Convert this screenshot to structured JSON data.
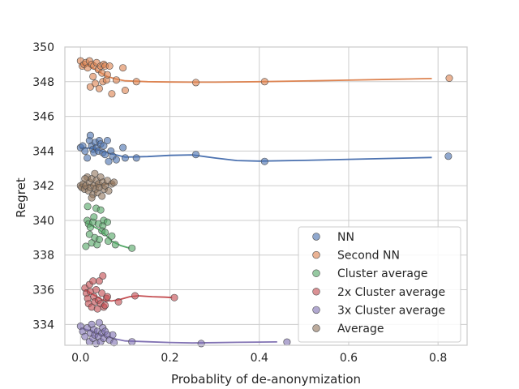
{
  "chart_data": {
    "type": "scatter",
    "xlabel": "Probablity of de-anonymization",
    "ylabel": "Regret",
    "xlim": [
      -0.035,
      0.865
    ],
    "ylim": [
      332.8,
      350.0
    ],
    "x_ticks": [
      0.0,
      0.2,
      0.4,
      0.6,
      0.8
    ],
    "x_tick_labels": [
      "0.0",
      "0.2",
      "0.4",
      "0.6",
      "0.8"
    ],
    "y_ticks": [
      334,
      336,
      338,
      340,
      342,
      344,
      346,
      348,
      350
    ],
    "y_tick_labels": [
      "334",
      "336",
      "338",
      "340",
      "342",
      "344",
      "346",
      "348",
      "350"
    ],
    "grid": true,
    "legend_position": "lower-right",
    "series": [
      {
        "name": "NN",
        "color": "#4c72b0",
        "points": [
          [
            0.0,
            344.2
          ],
          [
            0.005,
            344.3
          ],
          [
            0.01,
            344.0
          ],
          [
            0.015,
            343.6
          ],
          [
            0.02,
            344.6
          ],
          [
            0.022,
            344.9
          ],
          [
            0.025,
            344.3
          ],
          [
            0.028,
            344.1
          ],
          [
            0.03,
            343.9
          ],
          [
            0.033,
            344.5
          ],
          [
            0.036,
            344.2
          ],
          [
            0.04,
            344.0
          ],
          [
            0.042,
            344.6
          ],
          [
            0.045,
            344.4
          ],
          [
            0.05,
            343.9
          ],
          [
            0.052,
            344.3
          ],
          [
            0.055,
            343.8
          ],
          [
            0.06,
            344.6
          ],
          [
            0.063,
            343.4
          ],
          [
            0.068,
            344.0
          ],
          [
            0.072,
            343.7
          ],
          [
            0.08,
            343.5
          ],
          [
            0.095,
            344.2
          ],
          [
            0.1,
            343.6
          ],
          [
            0.125,
            343.6
          ],
          [
            0.258,
            343.8
          ],
          [
            0.412,
            343.4
          ],
          [
            0.823,
            343.7
          ]
        ],
        "fit": [
          [
            0.0,
            344.2
          ],
          [
            0.03,
            344.15
          ],
          [
            0.06,
            343.9
          ],
          [
            0.1,
            343.65
          ],
          [
            0.15,
            343.68
          ],
          [
            0.2,
            343.75
          ],
          [
            0.25,
            343.78
          ],
          [
            0.3,
            343.6
          ],
          [
            0.35,
            343.45
          ],
          [
            0.4,
            343.42
          ],
          [
            0.5,
            343.46
          ],
          [
            0.6,
            343.52
          ],
          [
            0.7,
            343.58
          ],
          [
            0.786,
            343.63
          ]
        ]
      },
      {
        "name": "Second NN",
        "color": "#dd8452",
        "points": [
          [
            0.0,
            349.2
          ],
          [
            0.004,
            348.9
          ],
          [
            0.008,
            349.0
          ],
          [
            0.012,
            349.1
          ],
          [
            0.016,
            348.8
          ],
          [
            0.02,
            349.2
          ],
          [
            0.022,
            347.7
          ],
          [
            0.025,
            349.0
          ],
          [
            0.028,
            348.3
          ],
          [
            0.03,
            348.9
          ],
          [
            0.033,
            347.9
          ],
          [
            0.036,
            349.1
          ],
          [
            0.04,
            348.7
          ],
          [
            0.042,
            347.6
          ],
          [
            0.045,
            348.9
          ],
          [
            0.048,
            348.5
          ],
          [
            0.05,
            348.0
          ],
          [
            0.052,
            349.0
          ],
          [
            0.055,
            348.9
          ],
          [
            0.058,
            348.1
          ],
          [
            0.06,
            348.4
          ],
          [
            0.065,
            348.9
          ],
          [
            0.07,
            347.3
          ],
          [
            0.08,
            348.1
          ],
          [
            0.095,
            348.8
          ],
          [
            0.1,
            347.5
          ],
          [
            0.125,
            348.0
          ],
          [
            0.258,
            347.95
          ],
          [
            0.412,
            348.0
          ],
          [
            0.825,
            348.2
          ]
        ],
        "fit": [
          [
            0.0,
            349.0
          ],
          [
            0.02,
            348.9
          ],
          [
            0.04,
            348.6
          ],
          [
            0.06,
            348.3
          ],
          [
            0.08,
            348.15
          ],
          [
            0.1,
            348.05
          ],
          [
            0.15,
            348.0
          ],
          [
            0.2,
            347.98
          ],
          [
            0.25,
            347.97
          ],
          [
            0.3,
            347.97
          ],
          [
            0.4,
            348.0
          ],
          [
            0.5,
            348.04
          ],
          [
            0.6,
            348.09
          ],
          [
            0.7,
            348.14
          ],
          [
            0.786,
            348.18
          ]
        ]
      },
      {
        "name": "Cluster average",
        "color": "#55a868",
        "points": [
          [
            0.015,
            340.0
          ],
          [
            0.018,
            339.8
          ],
          [
            0.02,
            339.2
          ],
          [
            0.022,
            339.6
          ],
          [
            0.025,
            338.7
          ],
          [
            0.028,
            339.9
          ],
          [
            0.03,
            340.2
          ],
          [
            0.032,
            339.0
          ],
          [
            0.035,
            340.7
          ],
          [
            0.037,
            338.6
          ],
          [
            0.04,
            339.8
          ],
          [
            0.042,
            338.9
          ],
          [
            0.045,
            340.6
          ],
          [
            0.048,
            339.4
          ],
          [
            0.05,
            339.7
          ],
          [
            0.052,
            340.0
          ],
          [
            0.055,
            339.3
          ],
          [
            0.06,
            339.9
          ],
          [
            0.062,
            338.8
          ],
          [
            0.07,
            339.1
          ],
          [
            0.078,
            338.6
          ],
          [
            0.115,
            338.4
          ],
          [
            0.012,
            338.5
          ],
          [
            0.016,
            340.8
          ]
        ],
        "fit": [
          [
            0.012,
            339.85
          ],
          [
            0.025,
            339.7
          ],
          [
            0.04,
            339.5
          ],
          [
            0.055,
            339.2
          ],
          [
            0.07,
            338.8
          ],
          [
            0.09,
            338.55
          ],
          [
            0.11,
            338.4
          ]
        ]
      },
      {
        "name": "2x Cluster average",
        "color": "#c44e52",
        "points": [
          [
            0.01,
            336.1
          ],
          [
            0.013,
            335.8
          ],
          [
            0.016,
            335.5
          ],
          [
            0.018,
            335.2
          ],
          [
            0.02,
            336.3
          ],
          [
            0.022,
            335.9
          ],
          [
            0.025,
            335.0
          ],
          [
            0.028,
            336.5
          ],
          [
            0.03,
            335.6
          ],
          [
            0.032,
            335.3
          ],
          [
            0.035,
            336.0
          ],
          [
            0.038,
            334.9
          ],
          [
            0.04,
            335.4
          ],
          [
            0.042,
            336.5
          ],
          [
            0.045,
            335.2
          ],
          [
            0.048,
            335.8
          ],
          [
            0.05,
            336.8
          ],
          [
            0.052,
            335.0
          ],
          [
            0.055,
            335.1
          ],
          [
            0.058,
            335.5
          ],
          [
            0.06,
            335.6
          ],
          [
            0.085,
            335.3
          ],
          [
            0.122,
            335.65
          ],
          [
            0.21,
            335.55
          ]
        ],
        "fit": [
          [
            0.01,
            336.0
          ],
          [
            0.03,
            335.7
          ],
          [
            0.05,
            335.4
          ],
          [
            0.07,
            335.35
          ],
          [
            0.09,
            335.45
          ],
          [
            0.11,
            335.6
          ],
          [
            0.13,
            335.65
          ],
          [
            0.16,
            335.6
          ],
          [
            0.19,
            335.57
          ],
          [
            0.205,
            335.55
          ]
        ]
      },
      {
        "name": "3x Cluster average",
        "color": "#8172b3",
        "points": [
          [
            0.0,
            333.9
          ],
          [
            0.005,
            333.6
          ],
          [
            0.01,
            333.3
          ],
          [
            0.015,
            333.8
          ],
          [
            0.02,
            333.0
          ],
          [
            0.022,
            333.5
          ],
          [
            0.025,
            334.0
          ],
          [
            0.028,
            333.2
          ],
          [
            0.03,
            333.7
          ],
          [
            0.032,
            333.4
          ],
          [
            0.035,
            332.9
          ],
          [
            0.038,
            333.6
          ],
          [
            0.04,
            333.3
          ],
          [
            0.042,
            334.1
          ],
          [
            0.045,
            333.0
          ],
          [
            0.048,
            333.5
          ],
          [
            0.05,
            333.8
          ],
          [
            0.052,
            333.2
          ],
          [
            0.055,
            333.6
          ],
          [
            0.06,
            333.4
          ],
          [
            0.065,
            333.1
          ],
          [
            0.072,
            333.4
          ],
          [
            0.075,
            332.95
          ],
          [
            0.115,
            333.0
          ],
          [
            0.27,
            332.9
          ],
          [
            0.462,
            332.98
          ]
        ],
        "fit": [
          [
            0.0,
            333.8
          ],
          [
            0.02,
            333.65
          ],
          [
            0.04,
            333.45
          ],
          [
            0.06,
            333.3
          ],
          [
            0.08,
            333.15
          ],
          [
            0.1,
            333.05
          ],
          [
            0.15,
            333.0
          ],
          [
            0.2,
            332.96
          ],
          [
            0.25,
            332.93
          ],
          [
            0.3,
            332.95
          ],
          [
            0.35,
            332.97
          ],
          [
            0.4,
            332.98
          ],
          [
            0.44,
            332.99
          ]
        ]
      },
      {
        "name": "Average",
        "color": "#937860",
        "points": [
          [
            0.0,
            342.0
          ],
          [
            0.003,
            341.9
          ],
          [
            0.006,
            342.1
          ],
          [
            0.009,
            341.8
          ],
          [
            0.012,
            342.0
          ],
          [
            0.015,
            342.5
          ],
          [
            0.018,
            341.7
          ],
          [
            0.02,
            342.2
          ],
          [
            0.022,
            341.9
          ],
          [
            0.025,
            342.4
          ],
          [
            0.028,
            341.5
          ],
          [
            0.03,
            342.0
          ],
          [
            0.032,
            342.7
          ],
          [
            0.034,
            341.8
          ],
          [
            0.036,
            342.3
          ],
          [
            0.038,
            341.6
          ],
          [
            0.04,
            342.1
          ],
          [
            0.042,
            341.9
          ],
          [
            0.045,
            342.5
          ],
          [
            0.048,
            341.4
          ],
          [
            0.05,
            342.2
          ],
          [
            0.053,
            341.8
          ],
          [
            0.055,
            342.0
          ],
          [
            0.06,
            342.3
          ],
          [
            0.063,
            341.7
          ],
          [
            0.07,
            342.1
          ],
          [
            0.075,
            342.2
          ],
          [
            0.01,
            342.4
          ],
          [
            0.025,
            341.3
          ]
        ],
        "fit": [
          [
            0.0,
            342.0
          ],
          [
            0.02,
            342.0
          ],
          [
            0.04,
            342.05
          ],
          [
            0.06,
            342.1
          ],
          [
            0.075,
            342.15
          ]
        ]
      }
    ]
  }
}
